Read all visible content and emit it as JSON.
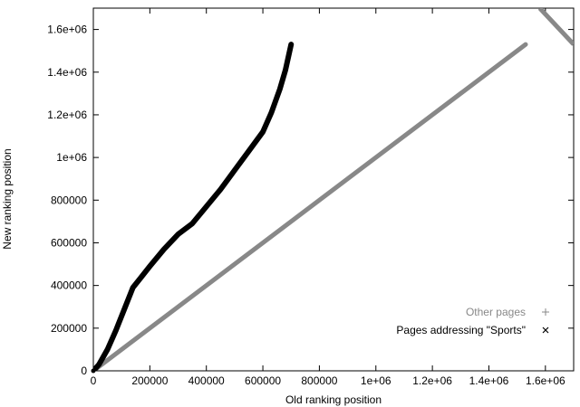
{
  "chart_data": {
    "type": "scatter",
    "title": "",
    "xlabel": "Old ranking position",
    "ylabel": "New ranking position",
    "xlim": [
      0,
      1700000
    ],
    "ylim": [
      0,
      1700000
    ],
    "grid": false,
    "legend_position": "right",
    "x_ticks": [
      {
        "value": 0,
        "label": "0"
      },
      {
        "value": 200000,
        "label": "200000"
      },
      {
        "value": 400000,
        "label": "400000"
      },
      {
        "value": 600000,
        "label": "600000"
      },
      {
        "value": 800000,
        "label": "800000"
      },
      {
        "value": 1000000,
        "label": "1e+06"
      },
      {
        "value": 1200000,
        "label": "1.2e+06"
      },
      {
        "value": 1400000,
        "label": "1.4e+06"
      },
      {
        "value": 1600000,
        "label": "1.6e+06"
      }
    ],
    "y_ticks": [
      {
        "value": 0,
        "label": "0"
      },
      {
        "value": 200000,
        "label": "200000"
      },
      {
        "value": 400000,
        "label": "400000"
      },
      {
        "value": 600000,
        "label": "600000"
      },
      {
        "value": 800000,
        "label": "800000"
      },
      {
        "value": 1000000,
        "label": "1e+06"
      },
      {
        "value": 1200000,
        "label": "1.2e+06"
      },
      {
        "value": 1400000,
        "label": "1.4e+06"
      },
      {
        "value": 1600000,
        "label": "1.6e+06"
      }
    ],
    "series": [
      {
        "name": "Other pages",
        "color": "#888888",
        "marker": "+",
        "points": [
          {
            "x": 0,
            "y": 0
          },
          {
            "x": 1530000,
            "y": 1530000
          }
        ],
        "extra_segment": [
          {
            "x": 1580000,
            "y": 1700000
          },
          {
            "x": 1700000,
            "y": 1530000
          }
        ]
      },
      {
        "name": "Pages addressing \"Sports\"",
        "color": "#000000",
        "marker": "x",
        "points": [
          {
            "x": 0,
            "y": 0
          },
          {
            "x": 20000,
            "y": 30000
          },
          {
            "x": 50000,
            "y": 100000
          },
          {
            "x": 80000,
            "y": 190000
          },
          {
            "x": 110000,
            "y": 290000
          },
          {
            "x": 140000,
            "y": 390000
          },
          {
            "x": 170000,
            "y": 440000
          },
          {
            "x": 200000,
            "y": 490000
          },
          {
            "x": 250000,
            "y": 570000
          },
          {
            "x": 300000,
            "y": 640000
          },
          {
            "x": 350000,
            "y": 690000
          },
          {
            "x": 400000,
            "y": 770000
          },
          {
            "x": 450000,
            "y": 850000
          },
          {
            "x": 500000,
            "y": 940000
          },
          {
            "x": 550000,
            "y": 1030000
          },
          {
            "x": 600000,
            "y": 1120000
          },
          {
            "x": 630000,
            "y": 1210000
          },
          {
            "x": 660000,
            "y": 1320000
          },
          {
            "x": 680000,
            "y": 1410000
          },
          {
            "x": 695000,
            "y": 1500000
          },
          {
            "x": 700000,
            "y": 1530000
          }
        ]
      }
    ]
  }
}
